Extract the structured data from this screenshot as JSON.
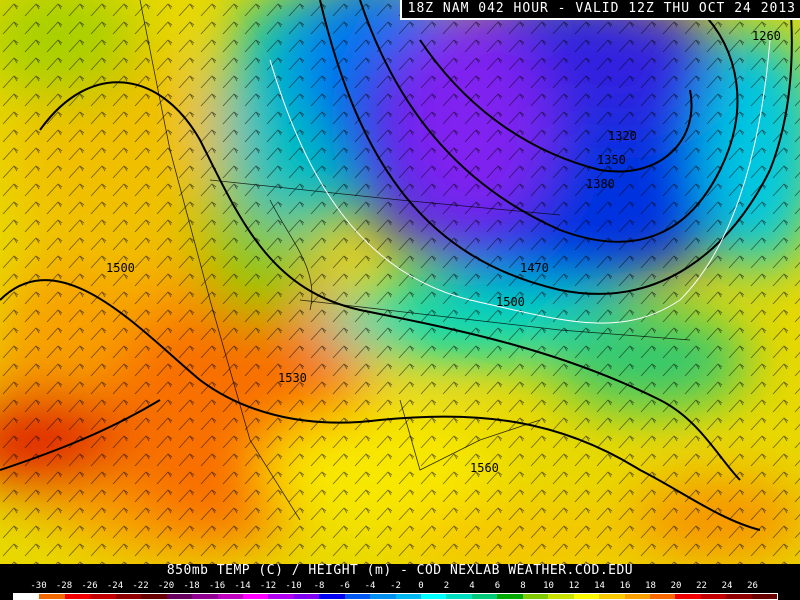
{
  "header": {
    "title": "18Z NAM 042 HOUR - VALID 12Z THU OCT 24 2013"
  },
  "footer": {
    "title": "850mb TEMP (C) / HEIGHT (m) - COD NEXLAB   WEATHER.COD.EDU"
  },
  "legend": {
    "labels": [
      "-30",
      "-28",
      "-26",
      "-24",
      "-22",
      "-20",
      "-18",
      "-16",
      "-14",
      "-12",
      "-10",
      "-8",
      "-6",
      "-4",
      "-2",
      "0",
      "2",
      "4",
      "6",
      "8",
      "10",
      "12",
      "14",
      "16",
      "18",
      "20",
      "22",
      "24",
      "26"
    ],
    "colors": [
      "#ffffff",
      "#f06800",
      "#f00000",
      "#c00000",
      "#900000",
      "#680000",
      "#680060",
      "#900090",
      "#c000c0",
      "#ff00ff",
      "#b000f0",
      "#8000f0",
      "#0000f0",
      "#0058f0",
      "#0090f0",
      "#00b8f0",
      "#00ffff",
      "#00e0c0",
      "#00c878",
      "#00a800",
      "#80c800",
      "#c8e000",
      "#f8f800",
      "#f8c800",
      "#f8a000",
      "#f86800",
      "#f00000",
      "#c00000",
      "#900000",
      "#680000"
    ]
  },
  "map": {
    "field": "850mb temperature / height",
    "contour_labels": [
      "1260",
      "1320",
      "1350",
      "1380",
      "1470",
      "1500",
      "1500",
      "1530",
      "1560"
    ]
  }
}
